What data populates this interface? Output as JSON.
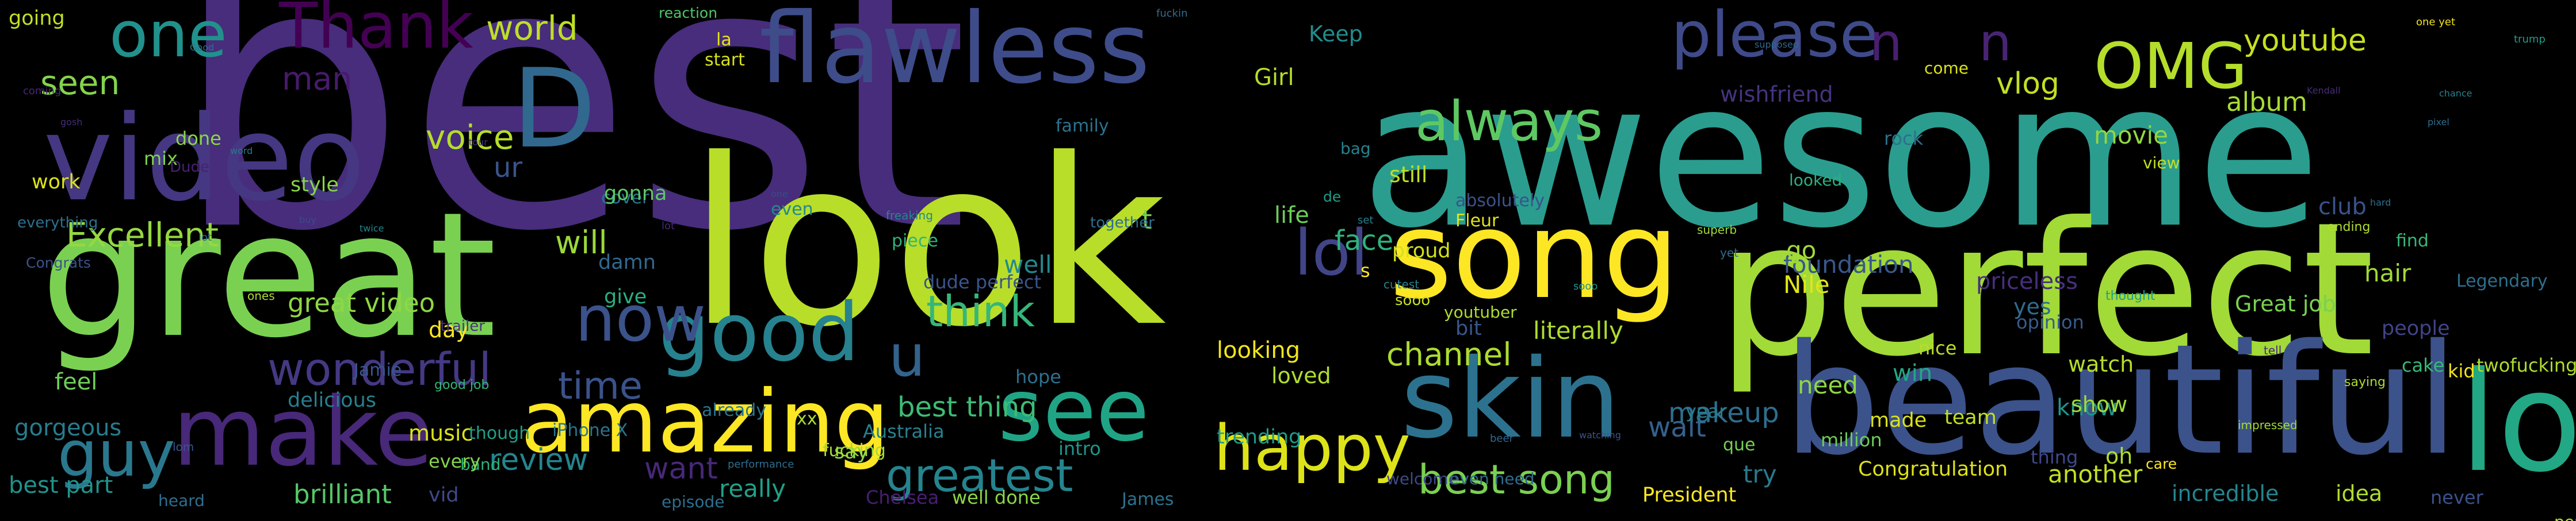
{
  "words": [
    {
      "text": "best",
      "color": "#472d7b"
    },
    {
      "text": "awesome",
      "color": "#2a9d8f"
    },
    {
      "text": "look",
      "color": "#b8de29"
    },
    {
      "text": "perfect",
      "color": "#a2da37"
    },
    {
      "text": "great",
      "color": "#7ad151"
    },
    {
      "text": "beautiful",
      "color": "#3b528b"
    },
    {
      "text": "video",
      "color": "#453781"
    },
    {
      "text": "flawless",
      "color": "#3e4c8a"
    },
    {
      "text": "D",
      "color": "#31688e"
    },
    {
      "text": "love",
      "color": "#22a884"
    },
    {
      "text": "song",
      "color": "#fde725"
    },
    {
      "text": "amazing",
      "color": "#fde725"
    },
    {
      "text": "skin",
      "color": "#2c728e"
    },
    {
      "text": "make",
      "color": "#482878"
    },
    {
      "text": "good",
      "color": "#26828e"
    },
    {
      "text": "see",
      "color": "#20a486"
    },
    {
      "text": "happy",
      "color": "#dde318"
    },
    {
      "text": "please",
      "color": "#3e4a89"
    },
    {
      "text": "always",
      "color": "#5ec962"
    },
    {
      "text": "one",
      "color": "#21918c"
    },
    {
      "text": "Thank",
      "color": "#440154"
    },
    {
      "text": "OMG",
      "color": "#b5de2b"
    },
    {
      "text": "lol",
      "color": "#414487"
    },
    {
      "text": "now",
      "color": "#3b528b"
    },
    {
      "text": "guy",
      "color": "#2a788e"
    },
    {
      "text": "u",
      "color": "#33638d"
    },
    {
      "text": "n",
      "color": "#481f70"
    },
    {
      "text": "n",
      "color": "#482475"
    },
    {
      "text": "Excellent",
      "color": "#95d840"
    },
    {
      "text": "greatest",
      "color": "#25848e"
    },
    {
      "text": "wonderful",
      "color": "#443983"
    },
    {
      "text": "think",
      "color": "#35b779"
    },
    {
      "text": "best song",
      "color": "#7ad151"
    },
    {
      "text": "channel",
      "color": "#addc30"
    },
    {
      "text": "time",
      "color": "#3b528b"
    },
    {
      "text": "world",
      "color": "#bddf26"
    },
    {
      "text": "voice",
      "color": "#b5de2b"
    },
    {
      "text": "seen",
      "color": "#84d44b"
    },
    {
      "text": "man",
      "color": "#481a6c"
    },
    {
      "text": "vlog",
      "color": "#c2df23"
    },
    {
      "text": "youtube",
      "color": "#c8e020"
    },
    {
      "text": "album",
      "color": "#a8db34"
    },
    {
      "text": "will",
      "color": "#9bd93c"
    },
    {
      "text": "review",
      "color": "#25858e"
    },
    {
      "text": "want",
      "color": "#482878"
    },
    {
      "text": "wait",
      "color": "#34618d"
    },
    {
      "text": "makeup",
      "color": "#2e6e8e"
    },
    {
      "text": "best thing",
      "color": "#3dbc74"
    },
    {
      "text": "great video",
      "color": "#8fd744"
    },
    {
      "text": "brilliant",
      "color": "#56c667"
    },
    {
      "text": "gorgeous",
      "color": "#287c8e"
    },
    {
      "text": "ur",
      "color": "#3a548c"
    },
    {
      "text": "Girl",
      "color": "#b5de2b"
    },
    {
      "text": "Keep",
      "color": "#228c8d"
    },
    {
      "text": "still",
      "color": "#c0df25"
    },
    {
      "text": "face",
      "color": "#2fb47c"
    },
    {
      "text": "loved",
      "color": "#b0dd2f"
    },
    {
      "text": "life",
      "color": "#6ccd5a"
    },
    {
      "text": "looking",
      "color": "#f1e51d"
    },
    {
      "text": "need",
      "color": "#8ed645"
    },
    {
      "text": "know",
      "color": "#20938c"
    },
    {
      "text": "win",
      "color": "#22a884"
    },
    {
      "text": "try",
      "color": "#2a788e"
    },
    {
      "text": "day",
      "color": "#fde725"
    },
    {
      "text": "music",
      "color": "#dae319"
    },
    {
      "text": "trending",
      "color": "#1e9b8a"
    },
    {
      "text": "best part",
      "color": "#20938c"
    },
    {
      "text": "delicious",
      "color": "#277f8e"
    },
    {
      "text": "going",
      "color": "#c2df23"
    },
    {
      "text": "work",
      "color": "#dde318"
    },
    {
      "text": "done",
      "color": "#8bd646"
    },
    {
      "text": "mix",
      "color": "#7fd34e"
    },
    {
      "text": "style",
      "color": "#86d549"
    },
    {
      "text": "cover",
      "color": "#2b758e"
    },
    {
      "text": "gonna",
      "color": "#5cc863"
    },
    {
      "text": "damn",
      "color": "#31688e"
    },
    {
      "text": "give",
      "color": "#2ab07f"
    },
    {
      "text": "proud",
      "color": "#d2e21b"
    },
    {
      "text": "well",
      "color": "#23898e"
    },
    {
      "text": "say",
      "color": "#8fd744"
    },
    {
      "text": "even",
      "color": "#23898e"
    },
    {
      "text": "dude perfect",
      "color": "#3a548c"
    },
    {
      "text": "intro",
      "color": "#1f968b"
    },
    {
      "text": "hope",
      "color": "#2d708e"
    },
    {
      "text": "really",
      "color": "#1fa188"
    },
    {
      "text": "Australia",
      "color": "#27808e"
    },
    {
      "text": "start",
      "color": "#d8e219"
    },
    {
      "text": "family",
      "color": "#2c728e"
    },
    {
      "text": "literally",
      "color": "#addc30"
    },
    {
      "text": "bit",
      "color": "#39568c"
    },
    {
      "text": "Great job",
      "color": "#7ad151"
    },
    {
      "text": "watch",
      "color": "#b5de2b"
    },
    {
      "text": "show",
      "color": "#a0da39"
    },
    {
      "text": "yes",
      "color": "#2f6c8e"
    },
    {
      "text": "nice",
      "color": "#b8de29"
    },
    {
      "text": "opinion",
      "color": "#365c8d"
    },
    {
      "text": "hair",
      "color": "#a2da37"
    },
    {
      "text": "kid",
      "color": "#f1e51d"
    },
    {
      "text": "cake",
      "color": "#37b878"
    },
    {
      "text": "people",
      "color": "#414487"
    },
    {
      "text": "priceless",
      "color": "#472f7d"
    },
    {
      "text": "foundation",
      "color": "#38588c"
    },
    {
      "text": "Nile",
      "color": "#e2e418"
    },
    {
      "text": "movie",
      "color": "#91d742"
    },
    {
      "text": "wishfriend",
      "color": "#46337f"
    },
    {
      "text": "rock",
      "color": "#2d708e"
    },
    {
      "text": "year",
      "color": "#287d8e"
    },
    {
      "text": "made",
      "color": "#dae319"
    },
    {
      "text": "team",
      "color": "#c2df23"
    },
    {
      "text": "million",
      "color": "#6ccd5a"
    },
    {
      "text": "Congratulation",
      "color": "#dde318"
    },
    {
      "text": "another",
      "color": "#c2df23"
    },
    {
      "text": "incredible",
      "color": "#25858e"
    },
    {
      "text": "idea",
      "color": "#b0dd2f"
    },
    {
      "text": "never",
      "color": "#3b528b"
    },
    {
      "text": "President",
      "color": "#fde725"
    },
    {
      "text": "Chelsea",
      "color": "#481f70"
    },
    {
      "text": "well done",
      "color": "#8bd646"
    },
    {
      "text": "James",
      "color": "#2c728e"
    },
    {
      "text": "episode",
      "color": "#2e6e8e"
    },
    {
      "text": "vid",
      "color": "#3e4989"
    },
    {
      "text": "heard",
      "color": "#2e6e8e"
    },
    {
      "text": "band",
      "color": "#2ab07f"
    },
    {
      "text": "every",
      "color": "#84d44b"
    },
    {
      "text": "feel",
      "color": "#6ece58"
    },
    {
      "text": "Jamie",
      "color": "#39568c"
    },
    {
      "text": "good job",
      "color": "#34b679"
    },
    {
      "text": "iPhone X",
      "color": "#2b748e"
    },
    {
      "text": "though",
      "color": "#1fa088"
    },
    {
      "text": "already",
      "color": "#2b748e"
    },
    {
      "text": "xx",
      "color": "#addc30"
    },
    {
      "text": "fucking",
      "color": "#a5db36"
    },
    {
      "text": "t",
      "color": "#7ad151"
    },
    {
      "text": "together",
      "color": "#2e6e8e"
    },
    {
      "text": "piece",
      "color": "#2fb47c"
    },
    {
      "text": "freaking",
      "color": "#24868e"
    },
    {
      "text": "la",
      "color": "#e7e419"
    },
    {
      "text": "reaction",
      "color": "#52c569"
    },
    {
      "text": "de",
      "color": "#1e9c89"
    },
    {
      "text": "absolutely",
      "color": "#3b528b"
    },
    {
      "text": "bag",
      "color": "#25838e"
    },
    {
      "text": "looked",
      "color": "#2ab07f"
    },
    {
      "text": "go",
      "color": "#a2da37"
    },
    {
      "text": "que",
      "color": "#75d054"
    },
    {
      "text": "come",
      "color": "#dae319"
    },
    {
      "text": "view",
      "color": "#c2df23"
    },
    {
      "text": "thought",
      "color": "#1f9e89"
    },
    {
      "text": "oh",
      "color": "#b0dd2f"
    },
    {
      "text": "thing",
      "color": "#3f4889"
    },
    {
      "text": "care",
      "color": "#fde725"
    },
    {
      "text": "ending",
      "color": "#b0dd2f"
    },
    {
      "text": "find",
      "color": "#37b878"
    },
    {
      "text": "club",
      "color": "#3b528b"
    },
    {
      "text": "Legendary",
      "color": "#2d708e"
    },
    {
      "text": "twofucking awesome",
      "color": "#addc30"
    },
    {
      "text": "perfectly",
      "color": "#b0dd2f"
    },
    {
      "text": "Fleur",
      "color": "#e2e418"
    },
    {
      "text": "youtuber",
      "color": "#addc30"
    },
    {
      "text": "s",
      "color": "#fde725"
    },
    {
      "text": "cutest",
      "color": "#25848e"
    },
    {
      "text": "sooo",
      "color": "#c8e020"
    },
    {
      "text": "even need",
      "color": "#2f6c8e"
    },
    {
      "text": "welcome",
      "color": "#3e4989"
    },
    {
      "text": "everything",
      "color": "#2d708e"
    },
    {
      "text": "Dude",
      "color": "#482173"
    },
    {
      "text": "Congrats",
      "color": "#3b528b"
    },
    {
      "text": "coming",
      "color": "#482878"
    },
    {
      "text": "trailer",
      "color": "#463480"
    },
    {
      "text": "performance",
      "color": "#2e6e8e"
    },
    {
      "text": "fuckin",
      "color": "#2e6e8e"
    },
    {
      "text": "one yet",
      "color": "#f1e51d"
    },
    {
      "text": "trump",
      "color": "#1f9e89"
    },
    {
      "text": "superb",
      "color": "#a0da39"
    },
    {
      "text": "yet",
      "color": "#2f6c8e"
    },
    {
      "text": "impressed",
      "color": "#a5db36"
    },
    {
      "text": "saying",
      "color": "#addc30"
    },
    {
      "text": "tell",
      "color": "#482878"
    },
    {
      "text": "beer",
      "color": "#31688e"
    },
    {
      "text": "lom",
      "color": "#3a548c"
    },
    {
      "text": "lot",
      "color": "#31688e"
    },
    {
      "text": "sooo",
      "color": "#1f968b"
    },
    {
      "text": "buy",
      "color": "#3e4989"
    },
    {
      "text": "twice",
      "color": "#25848e"
    },
    {
      "text": "gosh",
      "color": "#472a7a"
    },
    {
      "text": "tour",
      "color": "#463480"
    },
    {
      "text": "ones",
      "color": "#addc30"
    },
    {
      "text": "word",
      "color": "#2a788e"
    },
    {
      "text": "lot",
      "color": "#482878"
    },
    {
      "text": "set",
      "color": "#25848e"
    },
    {
      "text": "one",
      "color": "#3e4989"
    },
    {
      "text": "supposed",
      "color": "#31688e"
    },
    {
      "text": "watching",
      "color": "#3a548c"
    },
    {
      "text": "hard",
      "color": "#2d708e"
    },
    {
      "text": "chance",
      "color": "#26828e"
    },
    {
      "text": "pixel",
      "color": "#2e6e8e"
    },
    {
      "text": "Kendall",
      "color": "#472c7a"
    },
    {
      "text": "Good",
      "color": "#2d708e"
    }
  ]
}
